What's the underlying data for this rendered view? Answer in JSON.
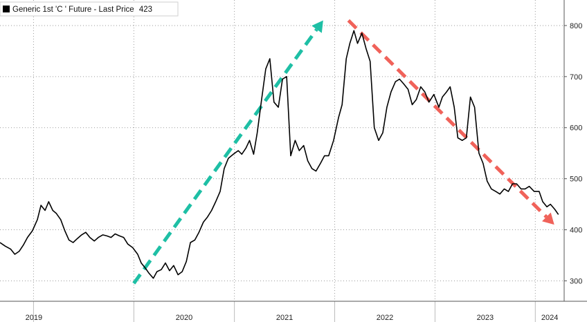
{
  "legend": {
    "label": "Generic 1st 'C ' Future - Last Price",
    "last_value": "423",
    "swatch_color": "#000000"
  },
  "chart_data": {
    "type": "line",
    "title": "",
    "xlabel": "",
    "ylabel": "",
    "ylim": [
      260,
      850
    ],
    "y_ticks": [
      300,
      400,
      500,
      600,
      700,
      800
    ],
    "y_axis_position": "right",
    "x_ticks": [
      "2019",
      "2020",
      "2021",
      "2022",
      "2023",
      "2024"
    ],
    "x_tick_dates": [
      "2019-01-01",
      "2020-01-01",
      "2021-01-01",
      "2022-01-01",
      "2023-01-01",
      "2024-01-01"
    ],
    "xlim": [
      "2018-09-01",
      "2024-04-15"
    ],
    "grid": true,
    "legend_position": "top-left",
    "series": [
      {
        "name": "Generic 1st 'C ' Future - Last Price",
        "color": "#000000",
        "x": [
          "2018-09-01",
          "2018-09-20",
          "2018-10-10",
          "2018-10-25",
          "2018-11-10",
          "2018-11-25",
          "2018-12-10",
          "2018-12-28",
          "2019-01-15",
          "2019-01-28",
          "2019-02-12",
          "2019-02-25",
          "2019-03-12",
          "2019-03-25",
          "2019-04-10",
          "2019-04-25",
          "2019-05-10",
          "2019-05-25",
          "2019-06-10",
          "2019-06-25",
          "2019-07-10",
          "2019-07-25",
          "2019-08-10",
          "2019-08-25",
          "2019-09-10",
          "2019-09-25",
          "2019-10-10",
          "2019-10-25",
          "2019-11-10",
          "2019-11-25",
          "2019-12-10",
          "2019-12-28",
          "2020-01-15",
          "2020-01-28",
          "2020-02-12",
          "2020-02-25",
          "2020-03-12",
          "2020-03-25",
          "2020-04-10",
          "2020-04-25",
          "2020-05-10",
          "2020-05-25",
          "2020-06-10",
          "2020-06-25",
          "2020-07-10",
          "2020-07-25",
          "2020-08-10",
          "2020-08-25",
          "2020-09-10",
          "2020-09-25",
          "2020-10-10",
          "2020-10-25",
          "2020-11-10",
          "2020-11-25",
          "2020-12-10",
          "2020-12-28",
          "2021-01-15",
          "2021-01-28",
          "2021-02-12",
          "2021-02-25",
          "2021-03-12",
          "2021-03-25",
          "2021-04-10",
          "2021-04-25",
          "2021-05-10",
          "2021-05-25",
          "2021-06-10",
          "2021-06-25",
          "2021-07-10",
          "2021-07-25",
          "2021-08-10",
          "2021-08-25",
          "2021-09-10",
          "2021-09-25",
          "2021-10-10",
          "2021-10-25",
          "2021-11-10",
          "2021-11-25",
          "2021-12-10",
          "2021-12-28",
          "2022-01-15",
          "2022-01-28",
          "2022-02-12",
          "2022-02-25",
          "2022-03-12",
          "2022-03-25",
          "2022-04-10",
          "2022-04-25",
          "2022-05-10",
          "2022-05-25",
          "2022-06-10",
          "2022-06-25",
          "2022-07-10",
          "2022-07-25",
          "2022-08-10",
          "2022-08-25",
          "2022-09-10",
          "2022-09-25",
          "2022-10-10",
          "2022-10-25",
          "2022-11-10",
          "2022-11-25",
          "2022-12-10",
          "2022-12-28",
          "2023-01-15",
          "2023-01-28",
          "2023-02-12",
          "2023-02-25",
          "2023-03-12",
          "2023-03-25",
          "2023-04-10",
          "2023-04-25",
          "2023-05-10",
          "2023-05-25",
          "2023-06-10",
          "2023-06-25",
          "2023-07-10",
          "2023-07-25",
          "2023-08-10",
          "2023-08-25",
          "2023-09-10",
          "2023-09-25",
          "2023-10-10",
          "2023-10-25",
          "2023-11-10",
          "2023-11-25",
          "2023-12-10",
          "2023-12-28",
          "2024-01-15",
          "2024-01-28",
          "2024-02-12",
          "2024-02-25",
          "2024-03-12",
          "2024-03-25"
        ],
        "values": [
          375,
          368,
          362,
          352,
          358,
          370,
          385,
          398,
          420,
          448,
          438,
          455,
          438,
          432,
          420,
          398,
          380,
          375,
          383,
          390,
          395,
          385,
          378,
          385,
          390,
          388,
          385,
          392,
          388,
          385,
          372,
          365,
          352,
          335,
          325,
          315,
          305,
          318,
          322,
          335,
          320,
          330,
          312,
          318,
          338,
          375,
          380,
          395,
          415,
          425,
          438,
          455,
          475,
          520,
          540,
          548,
          555,
          548,
          560,
          575,
          548,
          590,
          655,
          715,
          735,
          650,
          640,
          695,
          700,
          545,
          575,
          555,
          565,
          535,
          520,
          515,
          530,
          545,
          545,
          575,
          620,
          645,
          735,
          765,
          790,
          765,
          785,
          755,
          730,
          600,
          575,
          590,
          640,
          670,
          690,
          695,
          685,
          675,
          645,
          655,
          680,
          670,
          650,
          665,
          640,
          660,
          670,
          680,
          640,
          580,
          575,
          580,
          660,
          640,
          550,
          530,
          495,
          480,
          475,
          470,
          480,
          475,
          490,
          490,
          480,
          480,
          485,
          475,
          475,
          455,
          445,
          450,
          440,
          430
        ]
      }
    ],
    "annotations": [
      {
        "type": "arrow",
        "style": "dashed",
        "color": "#1ebfa5",
        "from": {
          "x": "2020-01-01",
          "y": 295
        },
        "to": {
          "x": "2021-11-20",
          "y": 810
        }
      },
      {
        "type": "arrow",
        "style": "dashed",
        "color": "#f0625a",
        "from": {
          "x": "2022-02-20",
          "y": 810
        },
        "to": {
          "x": "2024-03-10",
          "y": 410
        }
      }
    ]
  }
}
